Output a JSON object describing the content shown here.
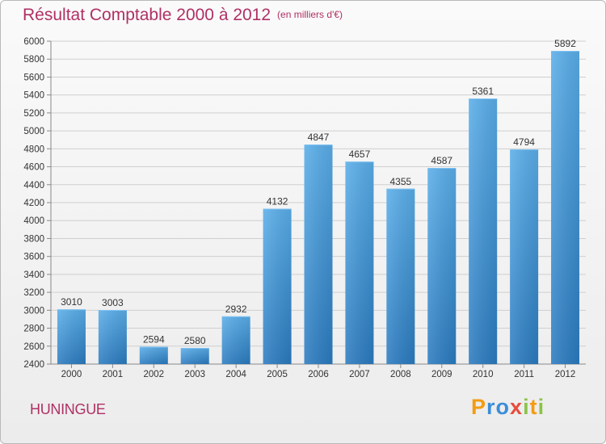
{
  "chart_data": {
    "type": "bar",
    "title": "Résultat Comptable 2000 à 2012",
    "subtitle": "(en milliers d'€)",
    "categories": [
      "2000",
      "2001",
      "2002",
      "2003",
      "2004",
      "2005",
      "2006",
      "2007",
      "2008",
      "2009",
      "2010",
      "2011",
      "2012"
    ],
    "values": [
      3010,
      3003,
      2594,
      2580,
      2932,
      4132,
      4847,
      4657,
      4355,
      4587,
      5361,
      4794,
      5892
    ],
    "ylim": [
      2400,
      6000
    ],
    "ytick_step": 200,
    "xlabel": "",
    "ylabel": "",
    "grid": true,
    "bar_color": "#3a8fd6"
  },
  "footer": {
    "commune": "HUNINGUE",
    "brand_letters": [
      "P",
      "r",
      "o",
      "x",
      "i",
      "t",
      "i"
    ],
    "brand_colors": [
      "#f39c12",
      "#3b8ed8",
      "#3b8ed8",
      "#e74c3c",
      "#8bc34a",
      "#f39c12",
      "#8bc34a"
    ]
  }
}
